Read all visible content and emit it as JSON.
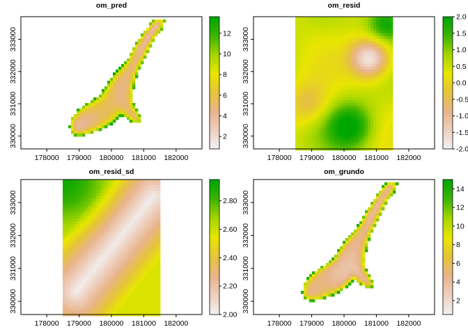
{
  "figure": {
    "layout": "2x2 grid of raster maps",
    "axis_x_ticks": [
      178000,
      179000,
      180000,
      181000,
      182000
    ],
    "axis_x_tick_labels": [
      "178000",
      "179000",
      "180000",
      "181000",
      "182000"
    ],
    "axis_y_ticks": [
      330000,
      331000,
      332000,
      333000
    ],
    "axis_y_tick_labels": [
      "330000",
      "331000",
      "332000",
      "333000"
    ],
    "xlim": [
      177200,
      182800
    ],
    "ylim": [
      329600,
      333700
    ],
    "colorscale_stops": [
      "#f2f2f2",
      "#eed0c0",
      "#e8b48a",
      "#e6c33b",
      "#e8e600",
      "#a4d600",
      "#3cb400",
      "#00a600"
    ]
  },
  "chart_data": [
    {
      "type": "heatmap",
      "title": "om_pred",
      "extent": "meuse_river_strip",
      "field": "fringe_high",
      "value_range": [
        0.8,
        13.6
      ],
      "legend_ticks": [
        2,
        4,
        6,
        8,
        10,
        12
      ],
      "legend_tick_labels": [
        "2",
        "4",
        "6",
        "8",
        "10",
        "12"
      ],
      "notes": "high values (~12) along the river bank, ~4-6 in interior, low (~2) in south-east arm"
    },
    {
      "type": "heatmap",
      "title": "om_resid",
      "extent": "rectangle",
      "field": "resid",
      "value_range": [
        -2.0,
        2.0
      ],
      "legend_ticks": [
        -2.0,
        -1.5,
        -1.0,
        -0.5,
        0.0,
        0.5,
        1.0,
        1.5,
        2.0
      ],
      "legend_tick_labels": [
        "-2.0",
        "-1.5",
        "-1.0",
        "-0.5",
        "0.0",
        "0.5",
        "1.0",
        "1.5",
        "2.0"
      ],
      "notes": "low (~-2) near (180800, 332400), high (~2) near (180200, 330300) and top-right"
    },
    {
      "type": "heatmap",
      "title": "om_resid_sd",
      "extent": "rectangle",
      "field": "resid_sd",
      "value_range": [
        2.0,
        2.95
      ],
      "legend_ticks": [
        2.0,
        2.2,
        2.4,
        2.6,
        2.8
      ],
      "legend_tick_labels": [
        "2.00",
        "2.20",
        "2.40",
        "2.60",
        "2.80"
      ],
      "notes": "minimum (~2.0) along a diagonal band of observations, rising to ~2.9 in the top-left corner"
    },
    {
      "type": "heatmap",
      "title": "om_grundo",
      "extent": "meuse_river_strip",
      "field": "grundo",
      "value_range": [
        0.5,
        15.0
      ],
      "legend_ticks": [
        2,
        4,
        6,
        8,
        10,
        12,
        14
      ],
      "legend_tick_labels": [
        "2",
        "4",
        "6",
        "8",
        "10",
        "12",
        "14"
      ],
      "notes": "high (~14) along river bank, interior ~3-6"
    }
  ]
}
